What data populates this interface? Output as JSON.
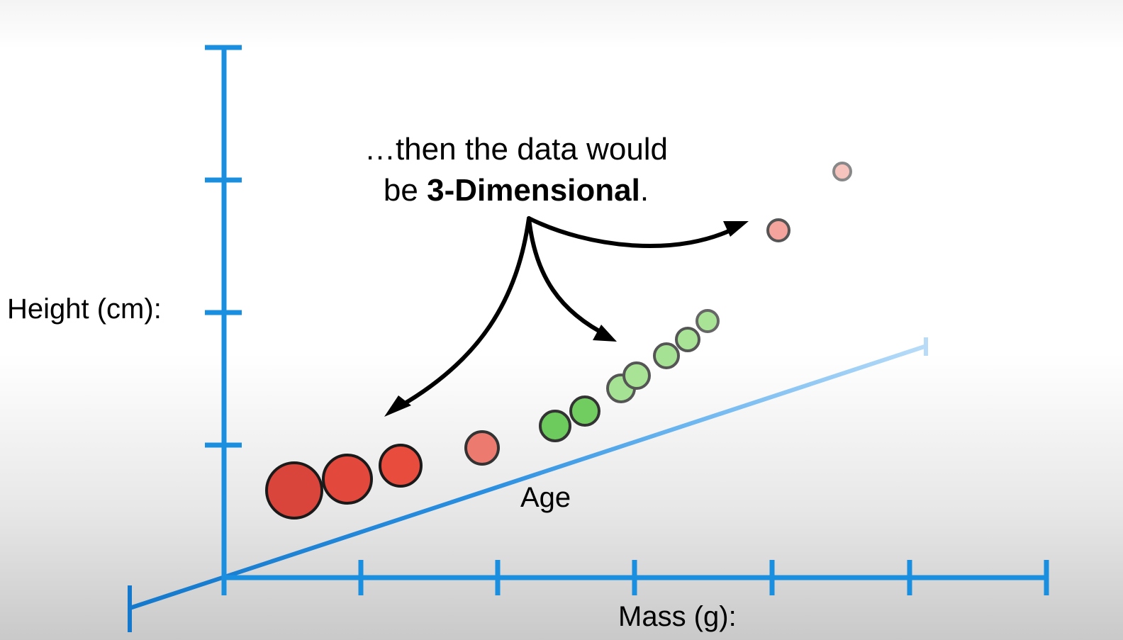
{
  "y_axis": {
    "label": "Height (cm):"
  },
  "x_axis": {
    "label": "Mass (g):"
  },
  "z_axis": {
    "label": "Age"
  },
  "annotation": {
    "line1": "…then the data would",
    "line2_prefix": "be ",
    "line2_bold": "3-Dimensional",
    "line2_suffix": "."
  },
  "colors": {
    "axis": "#1a8fe0",
    "red_point": "#e5493a",
    "salmon_point": "#ef7b70",
    "pink_point": "#f4a49c",
    "green_point": "#6bcb5a",
    "light_green_point": "#a6e394",
    "arrow": "#000000"
  },
  "icons": [
    "arrow-left-icon",
    "arrow-middle-icon",
    "arrow-right-icon"
  ]
}
